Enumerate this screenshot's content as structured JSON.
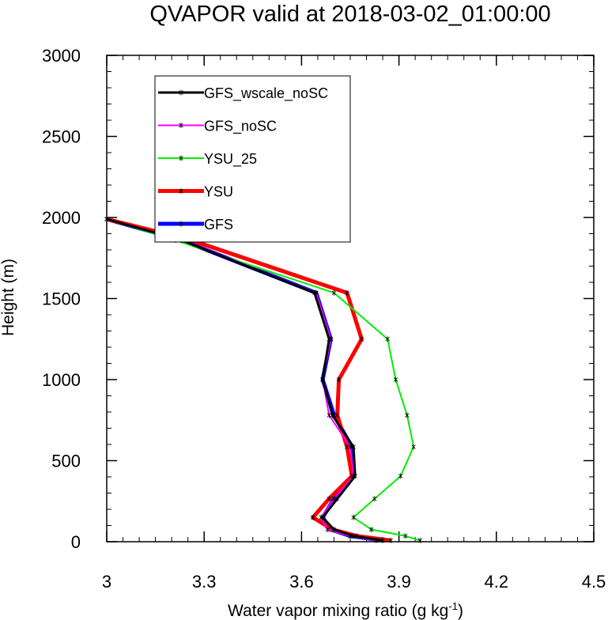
{
  "chart_data": {
    "type": "line",
    "title": "QVAPOR valid at 2018-03-02_01:00:00",
    "xlabel": "Water vapor mixing ratio (g kg",
    "xlabel_sup": "-1",
    "xlabel_tail": ")",
    "ylabel": "Height (m)",
    "xlim": [
      3.0,
      4.5
    ],
    "ylim": [
      0,
      3000
    ],
    "x_ticks": [
      3.0,
      3.3,
      3.6,
      3.9,
      4.2,
      4.5
    ],
    "x_tick_labels": [
      "3",
      "3.3",
      "3.6",
      "3.9",
      "4.2",
      "4.5"
    ],
    "y_ticks": [
      0,
      500,
      1000,
      1500,
      2000,
      2500,
      3000
    ],
    "y_tick_labels": [
      "0",
      "500",
      "1000",
      "1500",
      "2000",
      "2500",
      "3000"
    ],
    "x_minor_step": 0.05,
    "y_minor_step": 100,
    "grid": false,
    "legend_position": "top-left",
    "heights": [
      8,
      35,
      75,
      150,
      265,
      405,
      585,
      780,
      1000,
      1250,
      1535,
      1860,
      1990
    ],
    "series": [
      {
        "name": "GFS_wscale_noSC",
        "color": "#000000",
        "width": 3,
        "values": [
          3.85,
          3.76,
          3.7,
          3.665,
          3.71,
          3.765,
          3.76,
          3.695,
          3.665,
          3.685,
          3.64,
          3.23,
          3.0
        ]
      },
      {
        "name": "GFS_noSC",
        "color": "#ff00ff",
        "width": 2,
        "values": [
          3.83,
          3.75,
          3.68,
          3.66,
          3.7,
          3.76,
          3.75,
          3.685,
          3.665,
          3.69,
          3.645,
          3.235,
          3.0
        ]
      },
      {
        "name": "YSU_25",
        "color": "#00ee00",
        "width": 2,
        "values": [
          3.965,
          3.92,
          3.815,
          3.76,
          3.825,
          3.905,
          3.945,
          3.925,
          3.89,
          3.865,
          3.7,
          3.21,
          3.0
        ]
      },
      {
        "name": "YSU",
        "color": "#ff0000",
        "width": 5,
        "values": [
          3.875,
          3.77,
          3.695,
          3.635,
          3.685,
          3.755,
          3.74,
          3.71,
          3.715,
          3.785,
          3.74,
          3.26,
          3.0
        ]
      },
      {
        "name": "GFS",
        "color": "#0000ff",
        "width": 5,
        "values": [
          3.85,
          3.75,
          3.69,
          3.665,
          3.7,
          3.76,
          3.755,
          3.7,
          3.665,
          3.69,
          3.645,
          3.23,
          3.0
        ]
      }
    ],
    "draw_order": [
      4,
      3,
      2,
      1,
      0
    ]
  }
}
